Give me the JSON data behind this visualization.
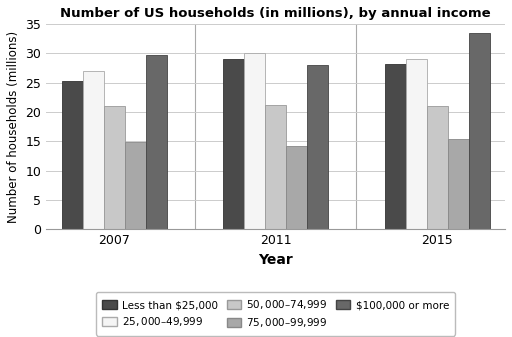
{
  "title": "Number of US households (in millions), by annual income",
  "xlabel": "Year",
  "ylabel": "Number of households (millions)",
  "years": [
    "2007",
    "2011",
    "2015"
  ],
  "categories": [
    "Less than $25,000",
    "$25,000–$49,999",
    "$50,000–$74,999",
    "$75,000–$99,999",
    "$100,000 or more"
  ],
  "values": {
    "Less than $25,000": [
      25.3,
      29.0,
      28.1
    ],
    "$25,000–$49,999": [
      27.0,
      30.0,
      29.0
    ],
    "$50,000–$74,999": [
      21.0,
      21.2,
      21.0
    ],
    "$75,000–$99,999": [
      14.8,
      14.2,
      15.3
    ],
    "$100,000 or more": [
      29.7,
      28.0,
      33.5
    ]
  },
  "colors": [
    "#4a4a4a",
    "#f5f5f5",
    "#c8c8c8",
    "#a8a8a8",
    "#686868"
  ],
  "edgecolors": [
    "#333333",
    "#aaaaaa",
    "#999999",
    "#888888",
    "#444444"
  ],
  "ylim": [
    0,
    35
  ],
  "yticks": [
    0,
    5,
    10,
    15,
    20,
    25,
    30,
    35
  ],
  "bar_width": 0.13,
  "group_centers": [
    0.35,
    1.35,
    2.35
  ],
  "background_color": "#ffffff"
}
